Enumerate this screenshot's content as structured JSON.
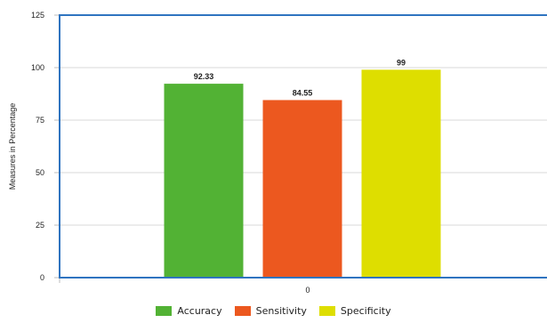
{
  "chart_data": {
    "type": "bar",
    "categories": [
      "0"
    ],
    "series": [
      {
        "name": "Accuracy",
        "values": [
          92.33
        ],
        "color": "#52b234",
        "label": "92.33"
      },
      {
        "name": "Sensitivity",
        "values": [
          84.55
        ],
        "color": "#ec581f",
        "label": "84.55"
      },
      {
        "name": "Specificity",
        "values": [
          99
        ],
        "color": "#dede00",
        "label": "99"
      }
    ],
    "title": "",
    "xlabel": "",
    "ylabel": "Measures in Percentage",
    "ylim": [
      0,
      125
    ],
    "yticks": [
      "0",
      "25",
      "50",
      "75",
      "100",
      "125"
    ],
    "grid": true,
    "legend_position": "bottom",
    "plot_border_color": "#2f74c0"
  }
}
